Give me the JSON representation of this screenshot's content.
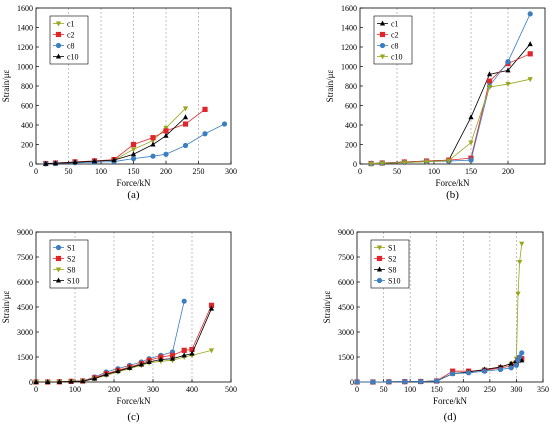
{
  "chart_data": [
    {
      "type": "line",
      "panel_label": "(a)",
      "xlabel": "Force/kN",
      "ylabel": "Strain/με",
      "xlim": [
        0,
        300
      ],
      "ylim": [
        0,
        1600
      ],
      "xticks": [
        0,
        50,
        100,
        150,
        200,
        250,
        300
      ],
      "yticks": [
        0,
        200,
        400,
        600,
        800,
        1000,
        1200,
        1400,
        1600
      ],
      "grid": "vertical-dashed",
      "legend_position": "top-left",
      "series": [
        {
          "name": "c1",
          "color": "#9aa61c",
          "marker": "triangle-down",
          "x": [
            15,
            30,
            60,
            90,
            120,
            150,
            180,
            200,
            230
          ],
          "y": [
            5,
            10,
            20,
            30,
            40,
            150,
            240,
            370,
            570
          ]
        },
        {
          "name": "c2",
          "color": "#e0262a",
          "marker": "square",
          "x": [
            15,
            30,
            60,
            90,
            120,
            150,
            180,
            200,
            230,
            260
          ],
          "y": [
            5,
            10,
            22,
            32,
            45,
            200,
            270,
            340,
            410,
            560
          ]
        },
        {
          "name": "c8",
          "color": "#3c7fc0",
          "marker": "circle",
          "x": [
            15,
            30,
            60,
            90,
            120,
            150,
            180,
            200,
            230,
            260,
            290
          ],
          "y": [
            2,
            5,
            12,
            18,
            25,
            55,
            80,
            100,
            190,
            310,
            410
          ]
        },
        {
          "name": "c10",
          "color": "#000000",
          "marker": "triangle-up",
          "x": [
            15,
            30,
            60,
            90,
            120,
            150,
            180,
            200,
            230
          ],
          "y": [
            3,
            8,
            18,
            28,
            40,
            100,
            200,
            290,
            480
          ]
        }
      ]
    },
    {
      "type": "line",
      "panel_label": "(b)",
      "xlabel": "Force/kN",
      "ylabel": "Strain/με",
      "xlim": [
        0,
        250
      ],
      "ylim": [
        0,
        1600
      ],
      "xticks": [
        0,
        50,
        100,
        150,
        200
      ],
      "yticks": [
        0,
        200,
        400,
        600,
        800,
        1000,
        1200,
        1400,
        1600
      ],
      "grid": "vertical-dashed",
      "legend_position": "top-left",
      "series": [
        {
          "name": "c1",
          "color": "#000000",
          "marker": "triangle-up",
          "x": [
            15,
            30,
            60,
            90,
            120,
            150,
            175,
            200,
            230
          ],
          "y": [
            5,
            10,
            20,
            30,
            40,
            480,
            920,
            960,
            1230
          ]
        },
        {
          "name": "c2",
          "color": "#e0262a",
          "marker": "square",
          "x": [
            15,
            30,
            60,
            90,
            120,
            150,
            175,
            200,
            230
          ],
          "y": [
            5,
            10,
            20,
            30,
            40,
            60,
            850,
            1030,
            1130
          ]
        },
        {
          "name": "c8",
          "color": "#3c7fc0",
          "marker": "circle",
          "x": [
            15,
            30,
            60,
            90,
            120,
            150,
            175,
            200,
            230
          ],
          "y": [
            3,
            8,
            15,
            25,
            30,
            40,
            800,
            1050,
            1540
          ]
        },
        {
          "name": "c10",
          "color": "#9aa61c",
          "marker": "triangle-down",
          "x": [
            15,
            30,
            60,
            90,
            120,
            150,
            175,
            200,
            230
          ],
          "y": [
            3,
            8,
            15,
            25,
            35,
            220,
            790,
            820,
            870
          ]
        }
      ]
    },
    {
      "type": "line",
      "panel_label": "(c)",
      "xlabel": "Force/kN",
      "ylabel": "Strain/με",
      "xlim": [
        0,
        500
      ],
      "ylim": [
        0,
        9000
      ],
      "xticks": [
        0,
        100,
        200,
        300,
        400,
        500
      ],
      "yticks": [
        0,
        1500,
        3000,
        4500,
        6000,
        7500,
        9000
      ],
      "grid": "vertical-dashed",
      "legend_position": "top-left",
      "series": [
        {
          "name": "S1",
          "color": "#3c7fc0",
          "marker": "circle",
          "x": [
            0,
            30,
            60,
            90,
            120,
            150,
            180,
            210,
            240,
            270,
            290,
            320,
            350,
            380
          ],
          "y": [
            0,
            0,
            10,
            40,
            60,
            300,
            600,
            800,
            1000,
            1200,
            1400,
            1600,
            1800,
            4850
          ]
        },
        {
          "name": "S2",
          "color": "#e0262a",
          "marker": "square",
          "x": [
            0,
            30,
            60,
            90,
            120,
            150,
            180,
            210,
            240,
            270,
            290,
            320,
            350,
            380,
            400,
            450
          ],
          "y": [
            0,
            0,
            10,
            40,
            60,
            250,
            500,
            700,
            900,
            1100,
            1300,
            1500,
            1600,
            1900,
            1950,
            4600
          ]
        },
        {
          "name": "S8",
          "color": "#9aa61c",
          "marker": "triangle-down",
          "x": [
            0,
            30,
            60,
            90,
            120,
            150,
            180,
            210,
            240,
            270,
            290,
            320,
            350,
            380,
            400,
            450
          ],
          "y": [
            0,
            0,
            5,
            30,
            50,
            200,
            400,
            600,
            800,
            1000,
            1150,
            1250,
            1300,
            1500,
            1600,
            1900
          ]
        },
        {
          "name": "S10",
          "color": "#000000",
          "marker": "triangle-up",
          "x": [
            0,
            30,
            60,
            90,
            120,
            150,
            180,
            210,
            240,
            270,
            290,
            320,
            350,
            380,
            400,
            450
          ],
          "y": [
            0,
            0,
            5,
            30,
            50,
            200,
            450,
            650,
            850,
            1050,
            1200,
            1350,
            1400,
            1600,
            1700,
            4400
          ]
        }
      ]
    },
    {
      "type": "line",
      "panel_label": "(d)",
      "xlabel": "Force/kN",
      "ylabel": "Strain/με",
      "xlim": [
        0,
        350
      ],
      "ylim": [
        0,
        9000
      ],
      "xticks": [
        0,
        50,
        100,
        150,
        200,
        250,
        300,
        350
      ],
      "yticks": [
        0,
        1500,
        3000,
        4500,
        6000,
        7500,
        9000
      ],
      "grid": "vertical-dashed",
      "legend_position": "top-left",
      "series": [
        {
          "name": "S1",
          "color": "#9aa61c",
          "marker": "triangle-down",
          "x": [
            0,
            30,
            60,
            90,
            120,
            150,
            180,
            210,
            240,
            270,
            290,
            300,
            303,
            306,
            310
          ],
          "y": [
            0,
            0,
            10,
            20,
            30,
            60,
            500,
            600,
            750,
            900,
            1100,
            1400,
            5300,
            7200,
            8300
          ]
        },
        {
          "name": "S2",
          "color": "#e0262a",
          "marker": "square",
          "x": [
            0,
            30,
            60,
            90,
            120,
            150,
            180,
            210,
            240,
            270,
            290,
            300,
            303,
            306,
            310
          ],
          "y": [
            0,
            0,
            10,
            20,
            30,
            60,
            650,
            650,
            700,
            850,
            950,
            1150,
            1300,
            1450,
            1400
          ]
        },
        {
          "name": "S8",
          "color": "#000000",
          "marker": "triangle-up",
          "x": [
            0,
            30,
            60,
            90,
            120,
            150,
            180,
            210,
            240,
            270,
            290,
            300,
            303,
            306,
            310
          ],
          "y": [
            0,
            0,
            10,
            20,
            30,
            60,
            500,
            600,
            750,
            900,
            1100,
            1250,
            1300,
            1350,
            1300
          ]
        },
        {
          "name": "S10",
          "color": "#3c7fc0",
          "marker": "circle",
          "x": [
            0,
            30,
            60,
            90,
            120,
            150,
            180,
            210,
            240,
            270,
            290,
            300,
            303,
            306,
            310
          ],
          "y": [
            0,
            0,
            10,
            20,
            30,
            60,
            500,
            550,
            650,
            750,
            850,
            1000,
            1300,
            1500,
            1750
          ]
        }
      ]
    }
  ]
}
